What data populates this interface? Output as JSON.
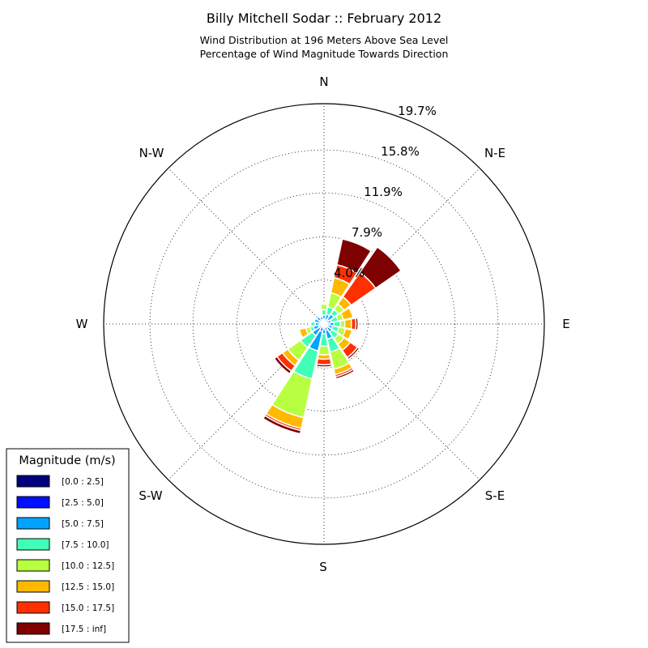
{
  "title": "Billy Mitchell Sodar :: February 2012",
  "subtitle_line1": "Wind Distribution at 196 Meters Above Sea Level",
  "subtitle_line2": "Percentage of Wind Magnitude Towards Direction",
  "chart_data": {
    "type": "windrose",
    "directions": [
      "N",
      "NNE",
      "NE",
      "ENE",
      "E",
      "ESE",
      "SE",
      "SSE",
      "S",
      "SSW",
      "SW",
      "WSW",
      "W",
      "WNW",
      "NW",
      "NNW"
    ],
    "direction_labels": {
      "N": "N",
      "NE": "N-E",
      "E": "E",
      "SE": "S-E",
      "S": "S",
      "SW": "S-W",
      "W": "W",
      "NW": "N-W"
    },
    "radial_ticks": [
      4.0,
      7.9,
      11.9,
      15.8,
      19.7
    ],
    "radial_tick_labels": [
      "4.0%",
      "7.9%",
      "11.9%",
      "15.8%",
      "19.7%"
    ],
    "rmax": 20.0,
    "legend_title": "Magnitude (m/s)",
    "bins": [
      "[0.0 : 2.5]",
      "[2.5 : 5.0]",
      "[5.0 : 7.5]",
      "[7.5 : 10.0]",
      "[10.0 : 12.5]",
      "[12.5 : 15.0]",
      "[15.0 : 17.5]",
      "[17.5 : inf]"
    ],
    "colors": [
      "#00007f",
      "#0010ff",
      "#00a4ff",
      "#40ffb7",
      "#b7ff40",
      "#ffb900",
      "#ff3000",
      "#7f0000"
    ],
    "series": [
      {
        "direction": "N",
        "values": [
          0.1,
          0.3,
          0.4,
          0.5,
          0.5,
          0.0,
          0.0,
          0.0
        ]
      },
      {
        "direction": "NNE",
        "values": [
          0.1,
          0.3,
          0.5,
          0.7,
          1.3,
          1.4,
          1.2,
          2.4
        ]
      },
      {
        "direction": "NE",
        "values": [
          0.1,
          0.4,
          0.6,
          0.5,
          0.6,
          0.8,
          2.7,
          2.8
        ]
      },
      {
        "direction": "ENE",
        "values": [
          0.1,
          0.2,
          0.4,
          0.6,
          0.5,
          0.9,
          0.0,
          0.0
        ]
      },
      {
        "direction": "E",
        "values": [
          0.1,
          0.4,
          0.4,
          0.6,
          0.4,
          0.6,
          0.4,
          0.2
        ]
      },
      {
        "direction": "ESE",
        "values": [
          0.1,
          0.3,
          0.4,
          0.6,
          0.6,
          0.6,
          0.0,
          0.0
        ]
      },
      {
        "direction": "SE",
        "values": [
          0.1,
          0.3,
          0.5,
          0.7,
          0.6,
          0.7,
          0.8,
          0.2
        ]
      },
      {
        "direction": "SSE",
        "values": [
          0.1,
          0.5,
          0.8,
          1.2,
          1.6,
          0.5,
          0.2,
          0.2
        ]
      },
      {
        "direction": "S",
        "values": [
          0.1,
          0.3,
          0.5,
          1.1,
          0.8,
          0.4,
          0.5,
          0.2
        ]
      },
      {
        "direction": "SSW",
        "values": [
          0.1,
          0.6,
          1.8,
          2.6,
          3.6,
          1.0,
          0.2,
          0.3
        ]
      },
      {
        "direction": "SW",
        "values": [
          0.1,
          0.4,
          0.8,
          1.3,
          1.4,
          0.6,
          0.6,
          0.3
        ]
      },
      {
        "direction": "WSW",
        "values": [
          0.1,
          0.4,
          0.5,
          0.3,
          0.4,
          0.6,
          0.0,
          0.0
        ]
      },
      {
        "direction": "W",
        "values": [
          0.1,
          0.3,
          0.4,
          0.4,
          0.0,
          0.0,
          0.0,
          0.0
        ]
      },
      {
        "direction": "WNW",
        "values": [
          0.1,
          0.3,
          0.5,
          0.0,
          0.0,
          0.0,
          0.0,
          0.0
        ]
      },
      {
        "direction": "NW",
        "values": [
          0.1,
          0.3,
          0.4,
          0.0,
          0.0,
          0.0,
          0.0,
          0.0
        ]
      },
      {
        "direction": "NNW",
        "values": [
          0.1,
          0.3,
          0.3,
          0.0,
          0.0,
          0.0,
          0.0,
          0.0
        ]
      }
    ]
  }
}
